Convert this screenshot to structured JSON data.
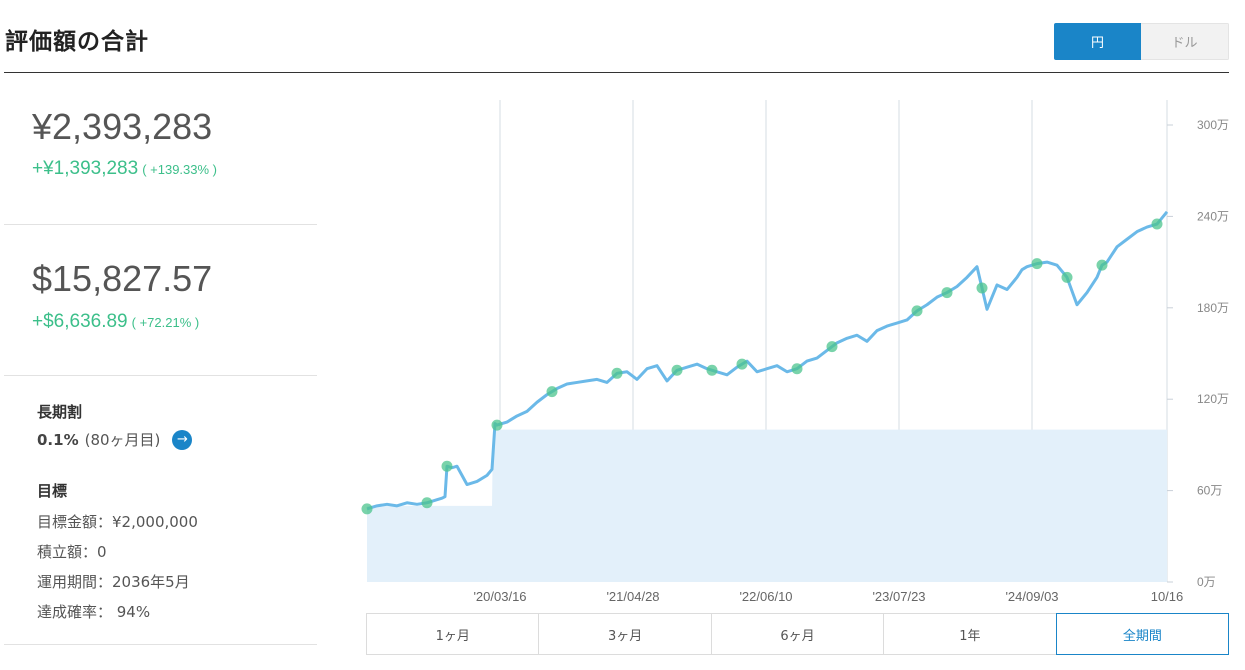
{
  "header": {
    "title": "評価額の合計",
    "currency_options": [
      "円",
      "ドル"
    ],
    "active_currency": "円"
  },
  "summary": {
    "jpy": {
      "value": "¥2,393,283",
      "gain": "+¥1,393,283",
      "gain_pct": "( +139.33% )"
    },
    "usd": {
      "value": "$15,827.57",
      "gain": "+$6,636.89",
      "gain_pct": "( +72.21% )"
    }
  },
  "long_term_discount": {
    "label": "長期割",
    "rate": "0.1%",
    "months": "(80ヶ月目)"
  },
  "goal": {
    "label": "目標",
    "target_amount": "目標金額：¥2,000,000",
    "contribution": "積立額：0",
    "period": "運用期間：2036年5月",
    "probability": "達成確率： 94%"
  },
  "range_buttons": [
    "1ヶ月",
    "3ヶ月",
    "6ヶ月",
    "1年",
    "全期間"
  ],
  "active_range": "全期間",
  "colors": {
    "accent": "#1a85c8",
    "gain": "#3cbf8a",
    "line": "#6bb9e8",
    "area": "#e3f0fa",
    "marker": "#4cc48e"
  },
  "chart_data": {
    "type": "line",
    "title": "",
    "y_unit_labels": [
      "0万",
      "60万",
      "120万",
      "180万",
      "240万",
      "300万"
    ],
    "ylim": [
      0,
      3000000
    ],
    "x_tick_labels": [
      "'20/03/16",
      "'21/04/28",
      "'22/06/10",
      "'23/07/23",
      "'24/09/03",
      "10/16"
    ],
    "series": [
      {
        "kind": "valuation",
        "x": [
          0,
          5,
          10,
          20,
          30,
          40,
          50,
          60,
          70,
          75,
          78,
          80,
          85,
          90,
          100,
          110,
          120,
          125,
          128,
          130,
          140,
          150,
          160,
          170,
          180,
          190,
          200,
          210,
          220,
          230,
          240,
          250,
          260,
          270,
          280,
          290,
          300,
          310,
          320,
          330,
          340,
          350,
          360,
          370,
          380,
          390,
          400,
          410,
          420,
          430,
          440,
          450,
          460,
          470,
          480,
          490,
          500,
          510,
          520,
          530,
          540,
          550,
          560,
          570,
          580,
          590,
          600,
          610,
          620,
          630,
          640,
          650,
          655,
          660,
          665,
          670,
          680,
          690,
          700,
          710,
          720,
          730,
          735,
          740,
          745,
          750,
          760,
          770,
          780,
          790,
          800
        ],
        "y": [
          480000,
          490000,
          500000,
          510000,
          500000,
          520000,
          510000,
          520000,
          540000,
          550000,
          560000,
          760000,
          750000,
          760000,
          640000,
          660000,
          700000,
          740000,
          1040000,
          1030000,
          1050000,
          1090000,
          1120000,
          1180000,
          1230000,
          1270000,
          1300000,
          1310000,
          1320000,
          1330000,
          1310000,
          1370000,
          1380000,
          1330000,
          1400000,
          1420000,
          1320000,
          1390000,
          1410000,
          1430000,
          1400000,
          1380000,
          1360000,
          1410000,
          1450000,
          1380000,
          1400000,
          1420000,
          1380000,
          1400000,
          1450000,
          1470000,
          1520000,
          1570000,
          1600000,
          1620000,
          1580000,
          1650000,
          1680000,
          1700000,
          1720000,
          1780000,
          1820000,
          1870000,
          1900000,
          1940000,
          2000000,
          2070000,
          1790000,
          1950000,
          1920000,
          2000000,
          2050000,
          2070000,
          2080000,
          2090000,
          2100000,
          2080000,
          2000000,
          1820000,
          1900000,
          2000000,
          2080000,
          2100000,
          2150000,
          2200000,
          2250000,
          2300000,
          2330000,
          2350000,
          2430000
        ]
      },
      {
        "kind": "principal",
        "x": [
          0,
          125,
          126,
          800
        ],
        "y": [
          500000,
          500000,
          1000000,
          1000000
        ]
      }
    ],
    "markers_x": [
      0,
      60,
      80,
      130,
      185,
      250,
      310,
      345,
      375,
      430,
      465,
      550,
      580,
      615,
      670,
      700,
      735,
      790
    ]
  }
}
